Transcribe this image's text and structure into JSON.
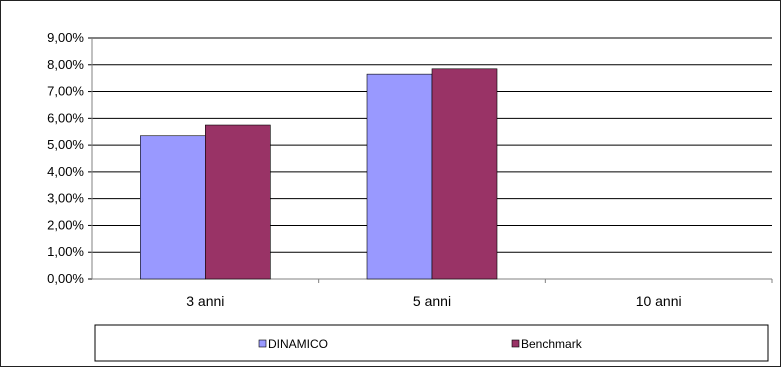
{
  "chart_data": {
    "type": "bar",
    "categories": [
      "3 anni",
      "5 anni",
      "10 anni"
    ],
    "series": [
      {
        "name": "DINAMICO",
        "values": [
          5.35,
          7.65,
          null
        ],
        "color": "#9999ff"
      },
      {
        "name": "Benchmark",
        "values": [
          5.75,
          7.85,
          null
        ],
        "color": "#993366"
      }
    ],
    "y_ticks": [
      "0,00%",
      "1,00%",
      "2,00%",
      "3,00%",
      "4,00%",
      "5,00%",
      "6,00%",
      "7,00%",
      "8,00%",
      "9,00%"
    ],
    "ylim": [
      0,
      9
    ],
    "title": "",
    "xlabel": "",
    "ylabel": "",
    "grid": true,
    "legend_position": "bottom"
  }
}
